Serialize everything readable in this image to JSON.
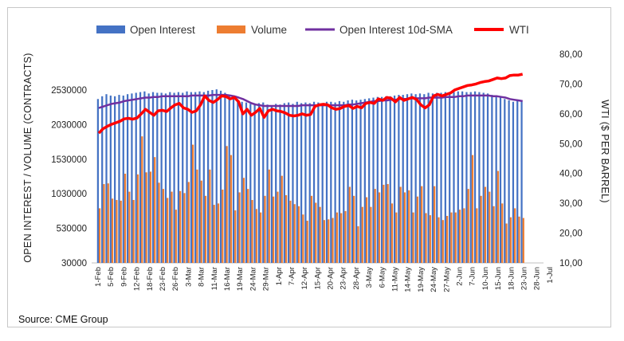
{
  "colors": {
    "open_interest": "#4472C4",
    "volume": "#ED7D31",
    "sma": "#7030A0",
    "wti": "#FF0000"
  },
  "legend": {
    "oi": "Open Interest",
    "vol": "Volume",
    "sma": "Open Interest 10d-SMA",
    "wti": "WTI"
  },
  "source": "Source: CME Group",
  "chart_data": {
    "type": "bar",
    "legend_position": "top",
    "grid": false,
    "ylabel": "OPEN INTEREST / VOLUME (CONTRACTS)",
    "y2label": "WTI ($ PER BARREL)",
    "ylim": [
      30000,
      2530000
    ],
    "yticks": [
      "2530000",
      "2030000",
      "1530000",
      "1030000",
      "530000",
      "30000"
    ],
    "y2lim": [
      10,
      80
    ],
    "y2ticks": [
      "80,00",
      "70,00",
      "60,00",
      "50,00",
      "40,00",
      "30,00",
      "20,00",
      "10,00"
    ],
    "xticks": [
      "1-Feb",
      "5-Feb",
      "9-Feb",
      "12-Feb",
      "18-Feb",
      "23-Feb",
      "26-Feb",
      "3-Mar",
      "8-Mar",
      "11-Mar",
      "16-Mar",
      "19-Mar",
      "24-Mar",
      "29-Mar",
      "1-Apr",
      "7-Apr",
      "12-Apr",
      "15-Apr",
      "20-Apr",
      "23-Apr",
      "28-Apr",
      "3-May",
      "6-May",
      "11-May",
      "14-May",
      "19-May",
      "24-May",
      "27-May",
      "2-Jun",
      "7-Jun",
      "10-Jun",
      "15-Jun",
      "18-Jun",
      "23-Jun",
      "28-Jun",
      "1-Jul"
    ],
    "series": [
      {
        "name": "Open Interest",
        "type": "bar",
        "values": [
          2400000,
          2440000,
          2470000,
          2450000,
          2440000,
          2460000,
          2450000,
          2470000,
          2480000,
          2490000,
          2500000,
          2510000,
          2480000,
          2500000,
          2490000,
          2490000,
          2480000,
          2500000,
          2490000,
          2500000,
          2490000,
          2510000,
          2500000,
          2500000,
          2510000,
          2500000,
          2520000,
          2530000,
          2540000,
          2520000,
          2490000,
          2460000,
          2420000,
          2380000,
          2360000,
          2350000,
          2330000,
          2320000,
          2340000,
          2350000,
          2320000,
          2300000,
          2330000,
          2320000,
          2340000,
          2350000,
          2330000,
          2360000,
          2340000,
          2350000,
          2340000,
          2360000,
          2350000,
          2340000,
          2360000,
          2360000,
          2350000,
          2370000,
          2360000,
          2380000,
          2390000,
          2380000,
          2390000,
          2400000,
          2410000,
          2420000,
          2430000,
          2430000,
          2440000,
          2440000,
          2450000,
          2460000,
          2460000,
          2470000,
          2480000,
          2470000,
          2480000,
          2470000,
          2490000,
          2480000,
          2490000,
          2490000,
          2500000,
          2490000,
          2500000,
          2510000,
          2510000,
          2500000,
          2500000,
          2510000,
          2500000,
          2490000,
          2480000,
          2460000,
          2440000,
          2420000,
          2400000,
          2380000,
          2360000,
          2370000,
          2380000
        ]
      },
      {
        "name": "Volume",
        "type": "bar",
        "values": [
          820000,
          1170000,
          1180000,
          960000,
          940000,
          930000,
          1320000,
          1060000,
          940000,
          1310000,
          1860000,
          1340000,
          1350000,
          1560000,
          1190000,
          1100000,
          970000,
          1060000,
          800000,
          1070000,
          1040000,
          1200000,
          1740000,
          1380000,
          1220000,
          1000000,
          1380000,
          870000,
          890000,
          1090000,
          1720000,
          1590000,
          790000,
          1050000,
          1260000,
          1100000,
          940000,
          810000,
          760000,
          1000000,
          1380000,
          990000,
          1060000,
          1290000,
          1010000,
          930000,
          880000,
          850000,
          730000,
          640000,
          1000000,
          900000,
          840000,
          650000,
          660000,
          680000,
          760000,
          750000,
          780000,
          1130000,
          1000000,
          560000,
          840000,
          980000,
          840000,
          1100000,
          1050000,
          1160000,
          1170000,
          890000,
          760000,
          1130000,
          1050000,
          1080000,
          760000,
          990000,
          1140000,
          750000,
          720000,
          1140000,
          690000,
          650000,
          710000,
          760000,
          760000,
          800000,
          820000,
          1100000,
          1590000,
          820000,
          1000000,
          1130000,
          1060000,
          850000,
          1360000,
          890000,
          600000,
          690000,
          820000,
          700000,
          680000
        ]
      },
      {
        "name": "Open Interest 10d-SMA",
        "type": "line",
        "values": [
          2270000,
          2290000,
          2310000,
          2330000,
          2340000,
          2350000,
          2370000,
          2380000,
          2390000,
          2400000,
          2410000,
          2420000,
          2420000,
          2430000,
          2430000,
          2440000,
          2440000,
          2440000,
          2440000,
          2440000,
          2440000,
          2440000,
          2450000,
          2450000,
          2450000,
          2450000,
          2450000,
          2460000,
          2460000,
          2460000,
          2460000,
          2450000,
          2440000,
          2420000,
          2400000,
          2370000,
          2340000,
          2320000,
          2310000,
          2300000,
          2300000,
          2300000,
          2300000,
          2300000,
          2300000,
          2300000,
          2300000,
          2300000,
          2310000,
          2310000,
          2310000,
          2310000,
          2310000,
          2310000,
          2310000,
          2310000,
          2310000,
          2310000,
          2310000,
          2320000,
          2320000,
          2330000,
          2340000,
          2350000,
          2360000,
          2370000,
          2370000,
          2380000,
          2380000,
          2390000,
          2390000,
          2400000,
          2400000,
          2400000,
          2410000,
          2410000,
          2410000,
          2410000,
          2420000,
          2420000,
          2420000,
          2420000,
          2430000,
          2430000,
          2430000,
          2440000,
          2440000,
          2450000,
          2450000,
          2450000,
          2450000,
          2450000,
          2450000,
          2440000,
          2440000,
          2430000,
          2420000,
          2400000,
          2390000,
          2380000,
          2370000
        ]
      },
      {
        "name": "WTI",
        "type": "line",
        "axis": "right",
        "values": [
          53.5,
          55.0,
          55.8,
          56.5,
          57.0,
          57.5,
          58.3,
          58.5,
          58.2,
          58.6,
          60.0,
          61.5,
          60.5,
          59.5,
          61.0,
          61.2,
          60.8,
          62.0,
          63.0,
          63.5,
          62.0,
          61.5,
          60.5,
          61.0,
          63.0,
          66.0,
          64.5,
          63.8,
          64.8,
          66.0,
          65.8,
          65.0,
          65.5,
          64.0,
          60.0,
          61.5,
          59.5,
          60.5,
          61.8,
          58.8,
          61.0,
          61.5,
          61.0,
          60.8,
          60.3,
          59.5,
          59.3,
          59.5,
          60.0,
          59.5,
          59.8,
          62.5,
          63.0,
          63.2,
          63.0,
          62.0,
          61.5,
          61.8,
          62.5,
          62.8,
          61.8,
          62.5,
          62.0,
          63.5,
          63.8,
          63.5,
          65.0,
          64.5,
          65.5,
          65.2,
          64.0,
          65.5,
          64.5,
          65.0,
          65.5,
          64.8,
          63.0,
          62.0,
          63.0,
          66.0,
          66.5,
          66.0,
          66.5,
          67.0,
          68.0,
          68.5,
          69.0,
          69.5,
          69.7,
          70.0,
          70.5,
          70.8,
          71.0,
          71.5,
          72.0,
          71.8,
          72.0,
          72.8,
          73.0,
          73.0,
          73.3
        ]
      }
    ]
  }
}
